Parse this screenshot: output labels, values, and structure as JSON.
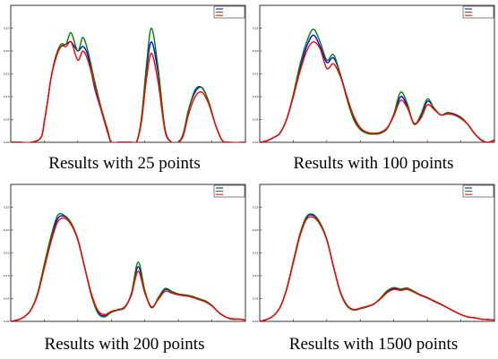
{
  "captions": [
    "Results with 25 points",
    "Results with 100 points",
    "Results with 200 points",
    "Results with 1500 points"
  ],
  "colors": {
    "series1": "#0000ff",
    "series2": "#008000",
    "series3": "#ff0000"
  },
  "chart_data": [
    {
      "type": "line",
      "title": "Results with 25 points",
      "xlim": [
        0,
        7
      ],
      "ylim": [
        0,
        0.3
      ],
      "grid": false,
      "legend": "top-right",
      "yticks": [
        0,
        0.05,
        0.1,
        0.15,
        0.2,
        0.25
      ],
      "x": [
        0,
        0.3,
        0.6,
        0.9,
        1.0,
        1.1,
        1.2,
        1.35,
        1.5,
        1.65,
        1.8,
        2.0,
        2.15,
        2.3,
        2.5,
        2.7,
        2.9,
        3.0,
        3.2,
        3.4,
        3.6,
        3.75,
        3.9,
        4.05,
        4.2,
        4.4,
        4.6,
        4.8,
        5.0,
        5.15,
        5.3,
        5.5,
        5.7,
        5.9,
        6.1,
        6.3,
        6.5,
        7.0
      ],
      "series": [
        {
          "name": "",
          "color": "#0000ff",
          "values": [
            0,
            0,
            0,
            0.01,
            0.045,
            0.09,
            0.14,
            0.19,
            0.21,
            0.215,
            0.22,
            0.2,
            0.21,
            0.19,
            0.12,
            0.07,
            0.02,
            0,
            0,
            0,
            0,
            0,
            0.05,
            0.16,
            0.22,
            0.15,
            0.03,
            0,
            0,
            0.02,
            0.07,
            0.11,
            0.12,
            0.09,
            0.04,
            0.005,
            0,
            0
          ]
        },
        {
          "name": "",
          "color": "#008000",
          "values": [
            0,
            0,
            0,
            0.01,
            0.045,
            0.09,
            0.14,
            0.19,
            0.215,
            0.215,
            0.24,
            0.2,
            0.23,
            0.2,
            0.135,
            0.075,
            0.025,
            0,
            0,
            0,
            0,
            0,
            0.055,
            0.17,
            0.25,
            0.16,
            0.03,
            0,
            0,
            0.02,
            0.07,
            0.115,
            0.12,
            0.09,
            0.04,
            0.005,
            0,
            0
          ]
        },
        {
          "name": "",
          "color": "#ff0000",
          "values": [
            0,
            0,
            0,
            0.01,
            0.045,
            0.09,
            0.14,
            0.185,
            0.21,
            0.21,
            0.22,
            0.18,
            0.2,
            0.18,
            0.125,
            0.07,
            0.02,
            0,
            0,
            0,
            0,
            0,
            0.045,
            0.14,
            0.195,
            0.13,
            0.025,
            0,
            0,
            0.015,
            0.06,
            0.1,
            0.11,
            0.085,
            0.04,
            0.005,
            0,
            0
          ]
        }
      ]
    },
    {
      "type": "line",
      "title": "Results with 100 points",
      "xlim": [
        0,
        7
      ],
      "ylim": [
        0,
        0.3
      ],
      "grid": false,
      "legend": "top-right",
      "yticks": [
        0,
        0.05,
        0.1,
        0.15,
        0.2,
        0.25
      ],
      "x": [
        0,
        0.2,
        0.4,
        0.6,
        0.8,
        1.0,
        1.2,
        1.4,
        1.6,
        1.8,
        2.0,
        2.2,
        2.4,
        2.6,
        2.8,
        3.0,
        3.2,
        3.4,
        3.6,
        3.8,
        4.0,
        4.2,
        4.4,
        4.6,
        4.8,
        5.0,
        5.2,
        5.4,
        5.6,
        5.8,
        6.0,
        6.2,
        6.4,
        6.6,
        6.8,
        7.0
      ],
      "series": [
        {
          "name": "",
          "color": "#0000ff",
          "values": [
            0,
            0.003,
            0.01,
            0.02,
            0.05,
            0.1,
            0.16,
            0.21,
            0.235,
            0.21,
            0.175,
            0.185,
            0.15,
            0.1,
            0.055,
            0.03,
            0.02,
            0.018,
            0.02,
            0.03,
            0.06,
            0.1,
            0.08,
            0.04,
            0.055,
            0.09,
            0.075,
            0.06,
            0.065,
            0.062,
            0.055,
            0.04,
            0.02,
            0.005,
            0,
            0.005
          ]
        },
        {
          "name": "",
          "color": "#008000",
          "values": [
            0,
            0.003,
            0.01,
            0.02,
            0.05,
            0.105,
            0.17,
            0.22,
            0.248,
            0.22,
            0.18,
            0.192,
            0.15,
            0.095,
            0.05,
            0.028,
            0.02,
            0.018,
            0.02,
            0.03,
            0.062,
            0.11,
            0.085,
            0.04,
            0.06,
            0.095,
            0.075,
            0.06,
            0.065,
            0.06,
            0.055,
            0.04,
            0.02,
            0.005,
            0,
            0.005
          ]
        },
        {
          "name": "",
          "color": "#ff0000",
          "values": [
            0,
            0.003,
            0.01,
            0.02,
            0.05,
            0.1,
            0.155,
            0.2,
            0.22,
            0.205,
            0.162,
            0.172,
            0.145,
            0.1,
            0.058,
            0.032,
            0.022,
            0.02,
            0.022,
            0.032,
            0.058,
            0.092,
            0.076,
            0.042,
            0.052,
            0.082,
            0.072,
            0.06,
            0.062,
            0.06,
            0.052,
            0.04,
            0.02,
            0.006,
            0,
            0.005
          ]
        }
      ]
    },
    {
      "type": "line",
      "title": "Results with 200 points",
      "xlim": [
        0,
        7
      ],
      "ylim": [
        0,
        0.3
      ],
      "grid": false,
      "legend": "top-right",
      "yticks": [
        0,
        0.05,
        0.1,
        0.15,
        0.2,
        0.25
      ],
      "x": [
        0,
        0.2,
        0.4,
        0.6,
        0.8,
        1.0,
        1.2,
        1.4,
        1.6,
        1.8,
        2.0,
        2.2,
        2.4,
        2.6,
        2.8,
        3.0,
        3.2,
        3.4,
        3.6,
        3.8,
        4.0,
        4.2,
        4.4,
        4.6,
        4.8,
        5.0,
        5.2,
        5.4,
        5.6,
        5.8,
        6.0,
        6.2,
        6.4,
        6.6,
        6.8,
        7.0
      ],
      "series": [
        {
          "name": "",
          "color": "#0000ff",
          "values": [
            0,
            0.003,
            0.01,
            0.025,
            0.06,
            0.12,
            0.18,
            0.225,
            0.23,
            0.215,
            0.18,
            0.12,
            0.06,
            0.02,
            0.012,
            0.02,
            0.025,
            0.03,
            0.06,
            0.12,
            0.065,
            0.03,
            0.05,
            0.07,
            0.065,
            0.06,
            0.058,
            0.055,
            0.05,
            0.045,
            0.035,
            0.02,
            0.01,
            0.005,
            0.005,
            0.003
          ]
        },
        {
          "name": "",
          "color": "#008000",
          "values": [
            0,
            0.003,
            0.01,
            0.025,
            0.062,
            0.125,
            0.186,
            0.232,
            0.232,
            0.216,
            0.18,
            0.12,
            0.058,
            0.018,
            0.01,
            0.02,
            0.025,
            0.03,
            0.062,
            0.13,
            0.068,
            0.03,
            0.052,
            0.072,
            0.066,
            0.06,
            0.058,
            0.055,
            0.05,
            0.045,
            0.035,
            0.02,
            0.01,
            0.005,
            0.005,
            0.003
          ]
        },
        {
          "name": "",
          "color": "#ff0000",
          "values": [
            0,
            0.003,
            0.01,
            0.025,
            0.058,
            0.116,
            0.174,
            0.218,
            0.226,
            0.212,
            0.178,
            0.12,
            0.062,
            0.024,
            0.015,
            0.022,
            0.026,
            0.032,
            0.058,
            0.11,
            0.062,
            0.032,
            0.048,
            0.066,
            0.062,
            0.058,
            0.056,
            0.053,
            0.048,
            0.043,
            0.034,
            0.02,
            0.01,
            0.006,
            0.005,
            0.003
          ]
        }
      ]
    },
    {
      "type": "line",
      "title": "Results with 1500 points",
      "xlim": [
        0,
        7
      ],
      "ylim": [
        0,
        0.3
      ],
      "grid": false,
      "legend": "top-right",
      "yticks": [
        0,
        0.05,
        0.1,
        0.15,
        0.2,
        0.25
      ],
      "x": [
        0,
        0.2,
        0.4,
        0.6,
        0.8,
        1.0,
        1.2,
        1.4,
        1.6,
        1.8,
        2.0,
        2.2,
        2.4,
        2.6,
        2.8,
        3.0,
        3.2,
        3.4,
        3.6,
        3.8,
        4.0,
        4.2,
        4.4,
        4.6,
        4.8,
        5.0,
        5.2,
        5.4,
        5.6,
        5.8,
        6.0,
        6.2,
        6.4,
        6.6,
        6.8,
        7.0
      ],
      "series": [
        {
          "name": "",
          "color": "#0000ff",
          "values": [
            0,
            0.004,
            0.012,
            0.03,
            0.07,
            0.13,
            0.19,
            0.228,
            0.232,
            0.215,
            0.18,
            0.12,
            0.065,
            0.035,
            0.025,
            0.028,
            0.032,
            0.038,
            0.05,
            0.065,
            0.072,
            0.07,
            0.072,
            0.065,
            0.058,
            0.052,
            0.045,
            0.038,
            0.03,
            0.022,
            0.015,
            0.01,
            0.008,
            0.005,
            0.004,
            0.003
          ]
        },
        {
          "name": "",
          "color": "#008000",
          "values": [
            0,
            0.004,
            0.012,
            0.03,
            0.071,
            0.132,
            0.192,
            0.23,
            0.234,
            0.216,
            0.18,
            0.12,
            0.064,
            0.034,
            0.025,
            0.028,
            0.032,
            0.038,
            0.051,
            0.067,
            0.074,
            0.071,
            0.073,
            0.066,
            0.058,
            0.052,
            0.045,
            0.038,
            0.03,
            0.022,
            0.015,
            0.01,
            0.008,
            0.005,
            0.004,
            0.003
          ]
        },
        {
          "name": "",
          "color": "#ff0000",
          "values": [
            0,
            0.004,
            0.012,
            0.03,
            0.069,
            0.128,
            0.187,
            0.224,
            0.228,
            0.212,
            0.178,
            0.12,
            0.066,
            0.036,
            0.026,
            0.029,
            0.033,
            0.038,
            0.049,
            0.063,
            0.07,
            0.068,
            0.07,
            0.064,
            0.057,
            0.051,
            0.044,
            0.037,
            0.03,
            0.022,
            0.015,
            0.01,
            0.008,
            0.005,
            0.004,
            0.003
          ]
        }
      ]
    }
  ]
}
